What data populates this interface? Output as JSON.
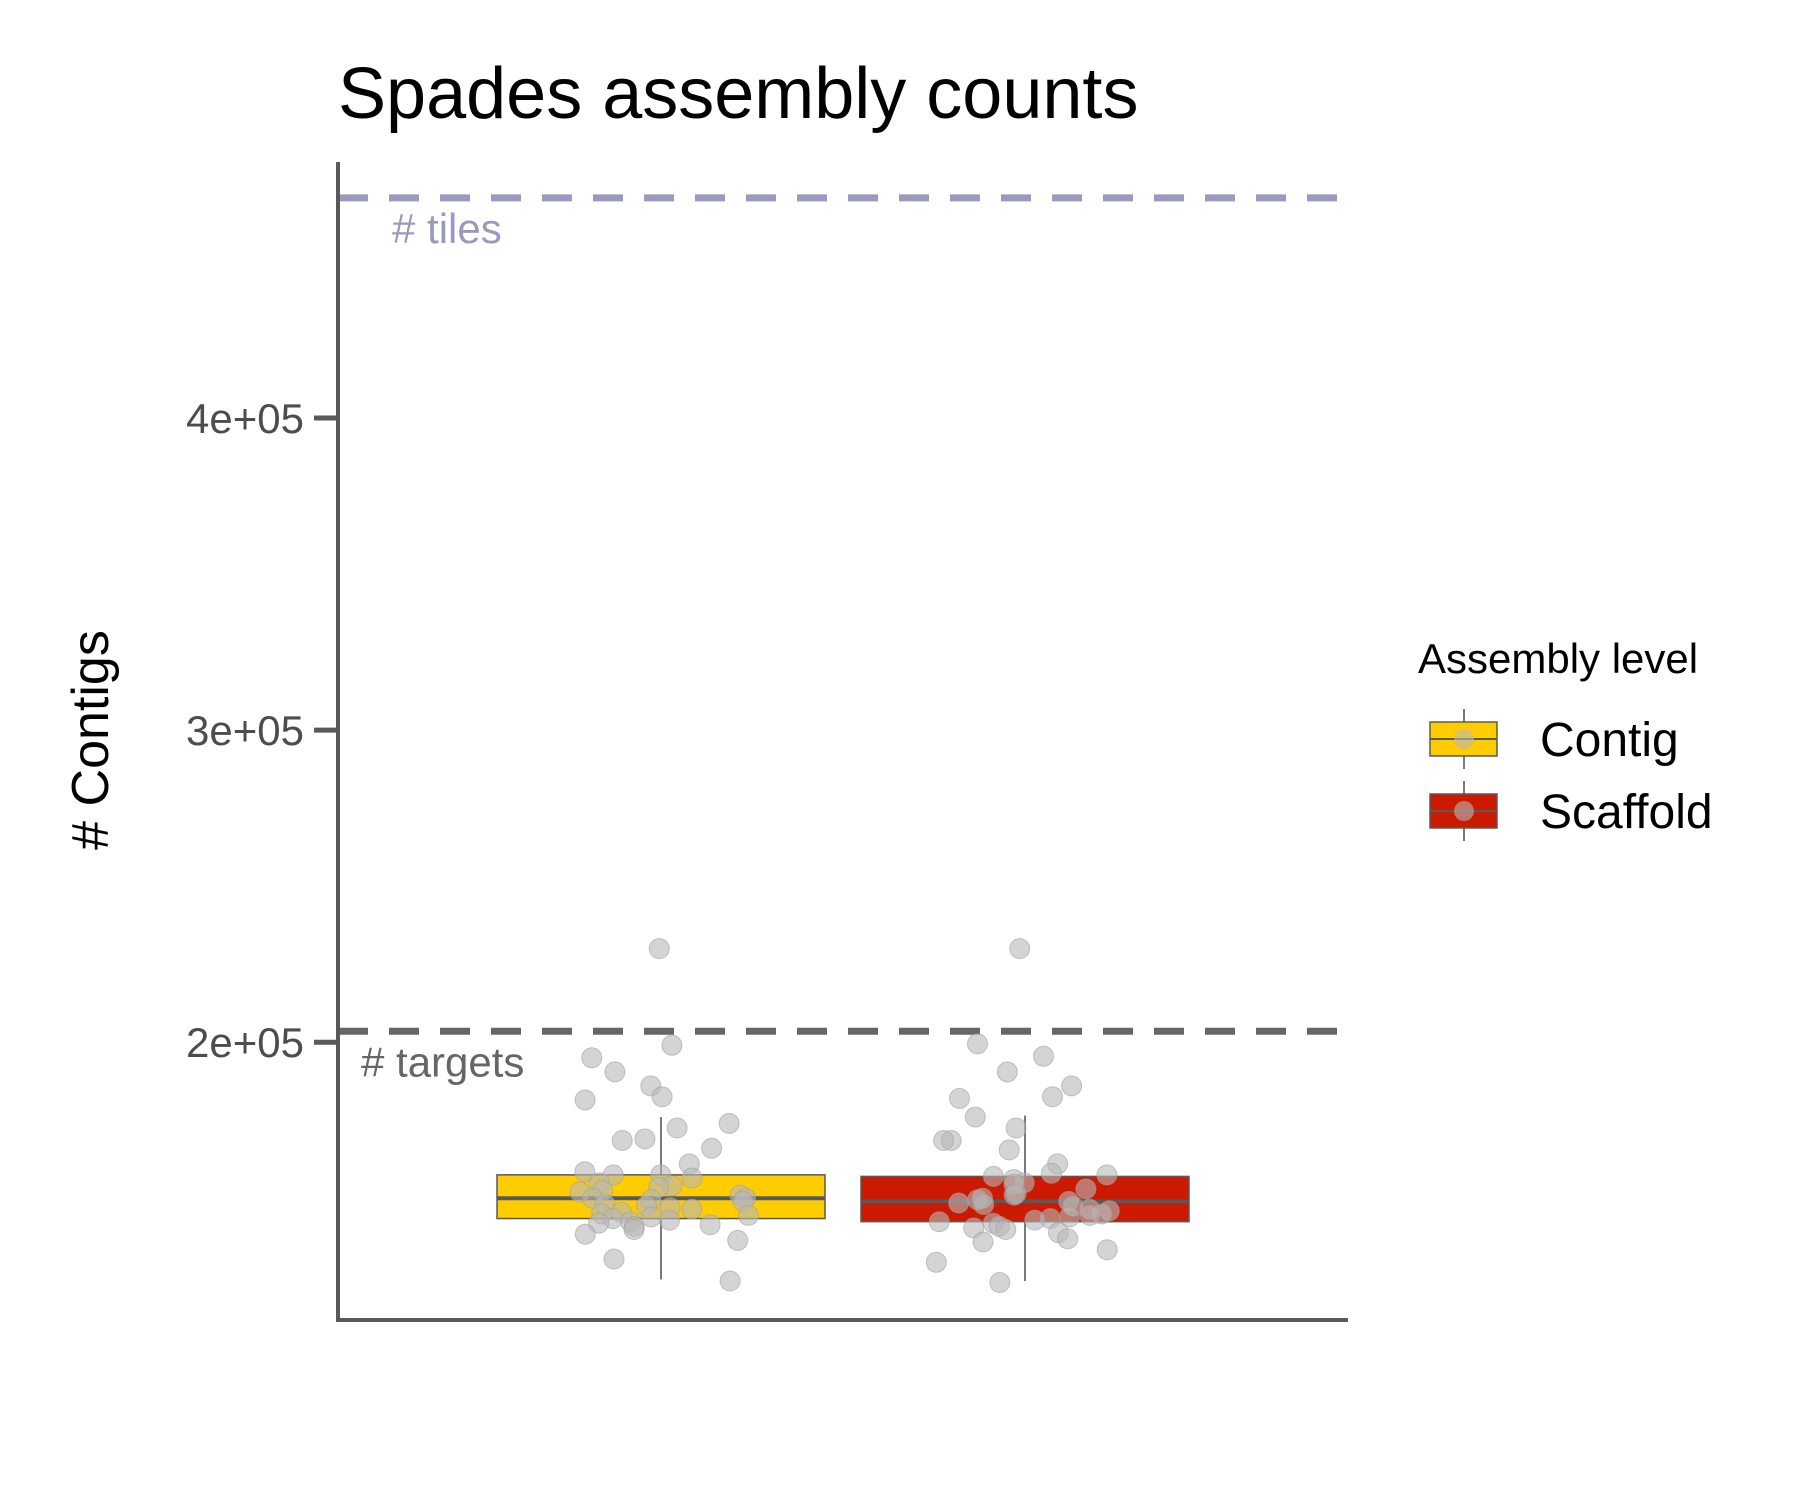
{
  "chart_data": {
    "type": "box",
    "title": "Spades assembly counts",
    "xlabel": "",
    "ylabel": "# Contigs",
    "ylim": [
      111000,
      482000
    ],
    "yticks": [
      200000,
      300000,
      400000
    ],
    "ytick_labels": [
      "2e+05",
      "3e+05",
      "4e+05"
    ],
    "grid": false,
    "legend": {
      "title": "Assembly level",
      "position": "right",
      "entries": [
        {
          "label": "Contig",
          "color": "#FFCC00"
        },
        {
          "label": "Scaffold",
          "color": "#CC1A00"
        }
      ]
    },
    "reference_lines": [
      {
        "label": "# tiles",
        "value": 470500,
        "color": "#9A9AC0"
      },
      {
        "label": "# targets",
        "value": 203500,
        "color": "#666666"
      }
    ],
    "series": [
      {
        "name": "Contig",
        "color": "#FFCC00",
        "box": {
          "min": 124000,
          "q1": 143500,
          "median": 150000,
          "q3": 157500,
          "max": 176000
        },
        "points": [
          230000,
          199000,
          195000,
          190500,
          186000,
          182500,
          181500,
          174000,
          172500,
          169000,
          168500,
          166000,
          161000,
          158500,
          157500,
          157500,
          156500,
          155000,
          154000,
          153500,
          152500,
          152000,
          151000,
          150000,
          150000,
          149500,
          149000,
          148000,
          147500,
          147000,
          146500,
          145500,
          145000,
          144500,
          144000,
          143500,
          143000,
          142500,
          142000,
          141500,
          141000,
          140000,
          138500,
          136500,
          130500,
          123500
        ]
      },
      {
        "name": "Scaffold",
        "color": "#CC1A00",
        "box": {
          "min": 123500,
          "q1": 142500,
          "median": 149000,
          "q3": 157000,
          "max": 176500
        },
        "points": [
          230000,
          199500,
          195500,
          190500,
          186000,
          182500,
          182000,
          176000,
          172500,
          168500,
          168500,
          165500,
          161000,
          158000,
          157500,
          157000,
          156000,
          155000,
          154500,
          153000,
          151500,
          151000,
          150000,
          149500,
          149000,
          148500,
          148000,
          147500,
          146500,
          146000,
          145000,
          144500,
          144000,
          143500,
          143000,
          142500,
          142000,
          141000,
          140500,
          140000,
          139000,
          137000,
          136000,
          133500,
          129500,
          123000
        ]
      }
    ]
  }
}
